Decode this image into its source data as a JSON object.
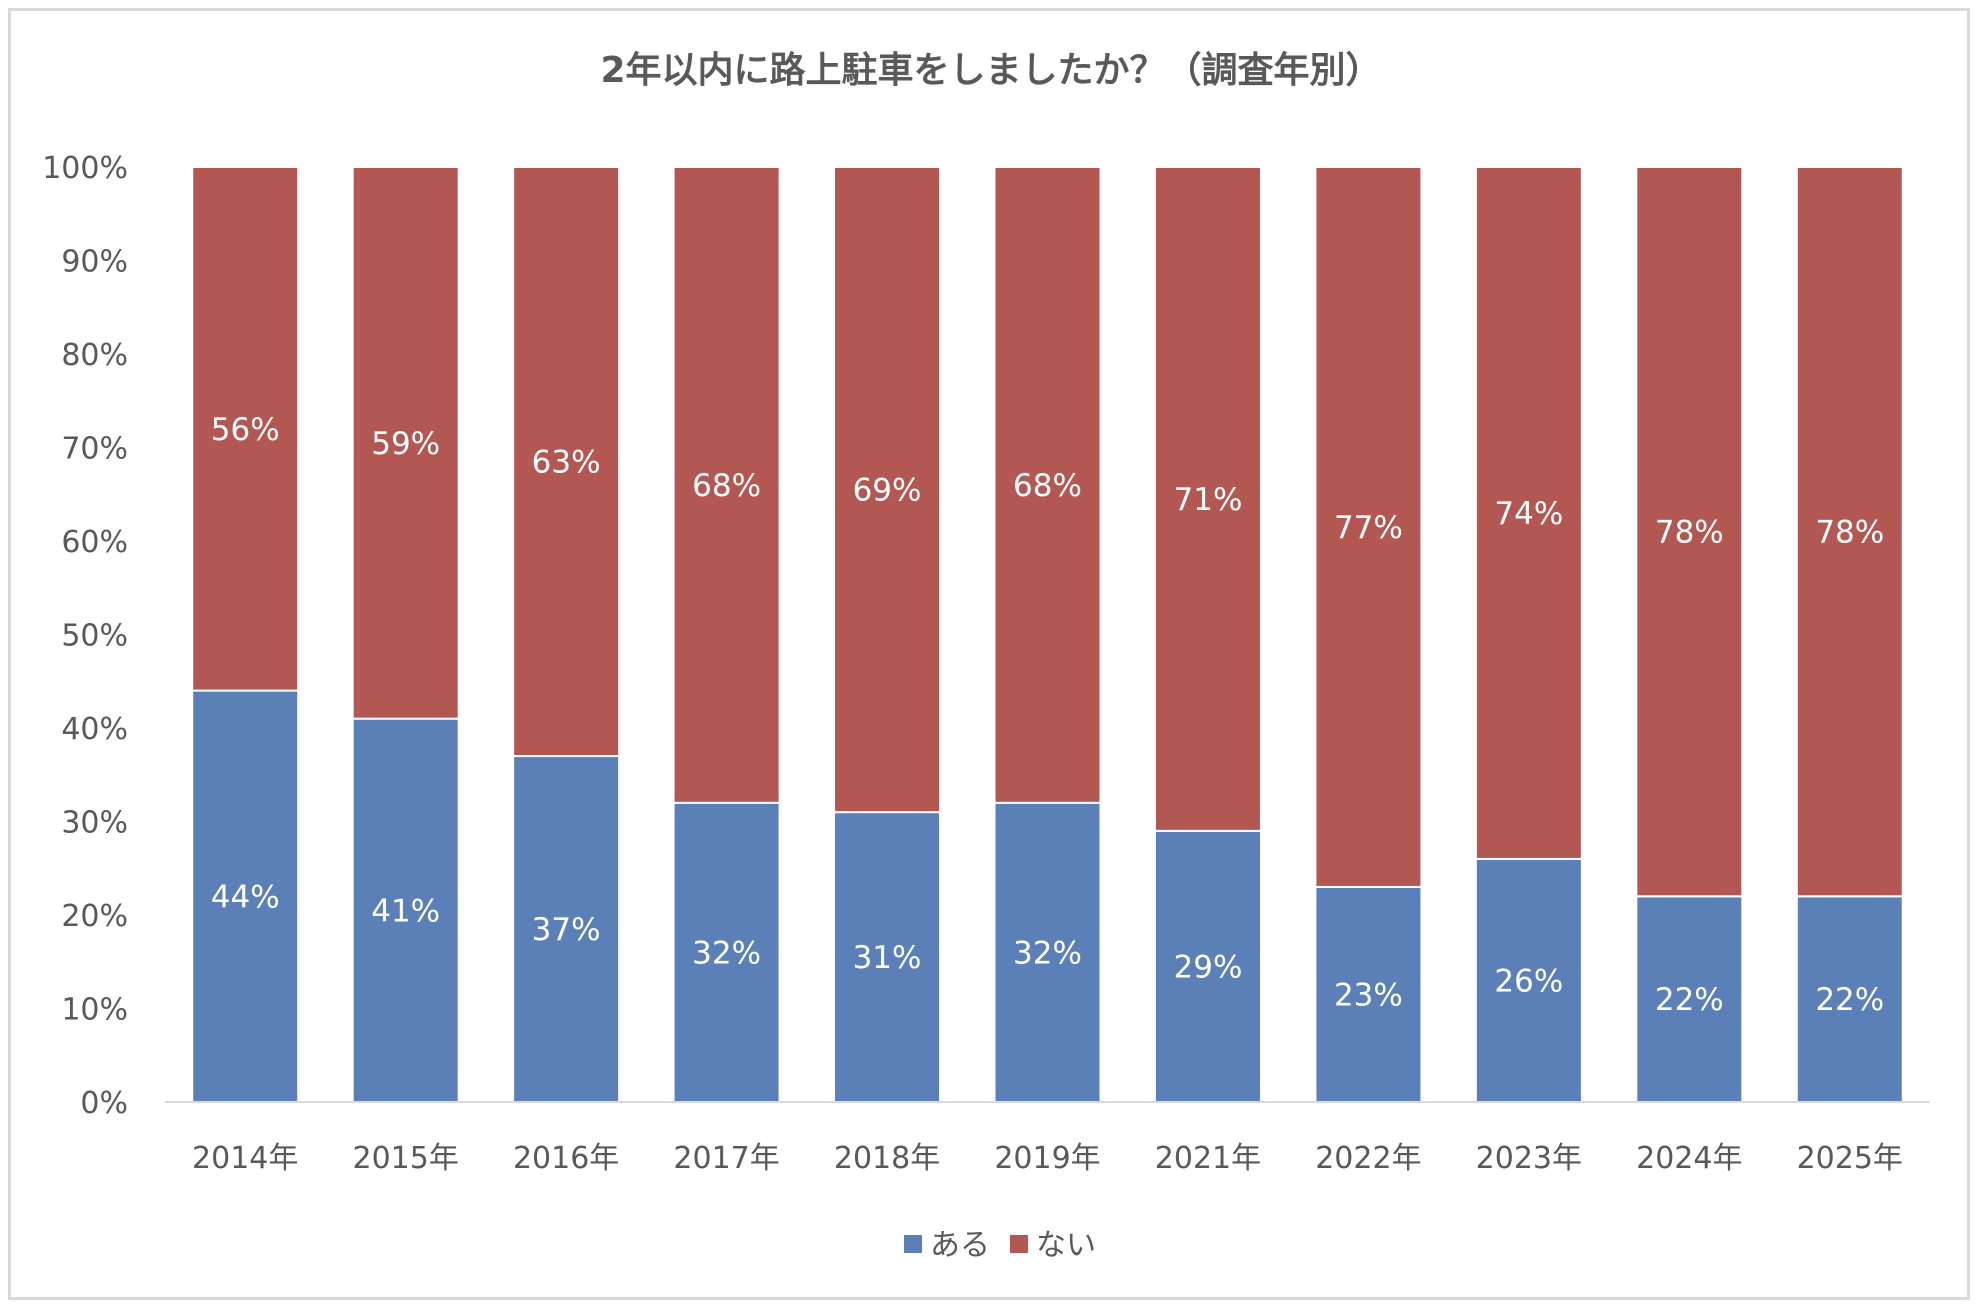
{
  "chart_data": {
    "type": "bar",
    "stacked": true,
    "percent_stacked": true,
    "title": "2年以内に路上駐車をしましたか？（調査年別）",
    "categories": [
      "2014年",
      "2015年",
      "2016年",
      "2017年",
      "2018年",
      "2019年",
      "2021年",
      "2022年",
      "2023年",
      "2024年",
      "2025年"
    ],
    "series": [
      {
        "name": "ある",
        "color": "#5b80b8",
        "values": [
          44,
          41,
          37,
          32,
          31,
          32,
          29,
          23,
          26,
          22,
          22
        ],
        "labels": [
          "44%",
          "41%",
          "37%",
          "32%",
          "31%",
          "32%",
          "29%",
          "23%",
          "26%",
          "22%",
          "22%"
        ]
      },
      {
        "name": "ない",
        "color": "#b35752",
        "values": [
          56,
          59,
          63,
          68,
          69,
          68,
          71,
          77,
          74,
          78,
          78
        ],
        "labels": [
          "56%",
          "59%",
          "63%",
          "68%",
          "69%",
          "68%",
          "71%",
          "77%",
          "74%",
          "78%",
          "78%"
        ]
      }
    ],
    "ylim": [
      0,
      100
    ],
    "yticks": [
      "0%",
      "10%",
      "20%",
      "30%",
      "40%",
      "50%",
      "60%",
      "70%",
      "80%",
      "90%",
      "100%"
    ],
    "grid": false,
    "legend_position": "bottom"
  }
}
